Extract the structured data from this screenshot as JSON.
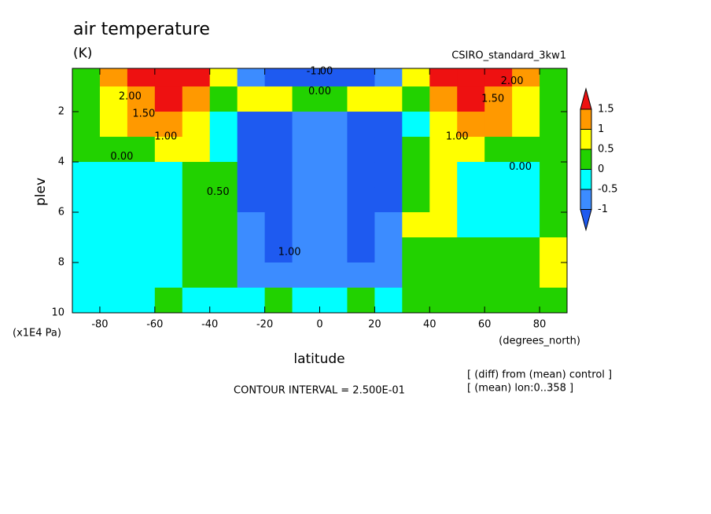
{
  "chart_data": {
    "type": "contour",
    "title": "air temperature",
    "units": "(K)",
    "dataset": "CSIRO_standard_3kw1",
    "x_label": "latitude",
    "x_units": "(degrees_north)",
    "y_label": "plev",
    "y_units": "(x1E4 Pa)",
    "notes": [
      "[ (diff) from (mean) control ]",
      "[ (mean) lon:0..358 ]"
    ],
    "contour_interval": "CONTOUR INTERVAL = 2.500E-01",
    "xlim": [
      -90,
      90
    ],
    "ylim": [
      10,
      0.28
    ],
    "xticks": [
      -80,
      -60,
      -40,
      -20,
      0,
      20,
      40,
      60,
      80
    ],
    "yticks": [
      2,
      4,
      6,
      8,
      10
    ],
    "levels": [
      -1,
      -0.5,
      0,
      0.5,
      1,
      1.5
    ],
    "colors": [
      "#1e5af0",
      "#3c8cff",
      "#00ffff",
      "#22d200",
      "#ffff00",
      "#ff9900",
      "#ee1111"
    ],
    "x": [
      -85,
      -75,
      -65,
      -55,
      -45,
      -35,
      -25,
      -15,
      -5,
      5,
      15,
      25,
      35,
      45,
      55,
      65,
      75,
      85
    ],
    "y": [
      0.5,
      1.5,
      2.5,
      3.5,
      4.5,
      5.5,
      6.5,
      7.5,
      8.5,
      9.5
    ],
    "z": [
      [
        0.3,
        1.2,
        1.8,
        2.2,
        1.6,
        0.7,
        -0.7,
        -1.2,
        -1.3,
        -1.3,
        -1.2,
        -0.7,
        0.7,
        1.6,
        2.2,
        1.8,
        1.2,
        0.3
      ],
      [
        0.3,
        0.8,
        1.3,
        1.7,
        1.2,
        0.2,
        0.6,
        0.7,
        0.3,
        0.3,
        0.7,
        0.6,
        0.2,
        1.2,
        1.7,
        1.3,
        0.8,
        0.3
      ],
      [
        0.3,
        0.6,
        1.2,
        1.3,
        0.8,
        -0.3,
        -1.2,
        -1.1,
        -0.8,
        -0.8,
        -1.1,
        -1.2,
        -0.3,
        0.8,
        1.3,
        1.2,
        0.6,
        0.3
      ],
      [
        0.2,
        0.3,
        0.4,
        0.6,
        0.6,
        -0.2,
        -1.2,
        -1.2,
        -0.6,
        -0.6,
        -1.2,
        -1.2,
        0.3,
        0.9,
        0.6,
        0.4,
        0.3,
        0.2
      ],
      [
        -0.2,
        -0.2,
        -0.2,
        -0.2,
        0.3,
        0.2,
        -1.1,
        -1.2,
        -0.6,
        -0.6,
        -1.2,
        -1.1,
        0.3,
        0.8,
        -0.1,
        -0.3,
        -0.2,
        0.2
      ],
      [
        -0.2,
        -0.4,
        -0.3,
        -0.2,
        0.2,
        0.2,
        -1.1,
        -1.2,
        -0.7,
        -0.7,
        -1.2,
        -1.1,
        0.4,
        0.8,
        -0.3,
        -0.4,
        -0.2,
        0.2
      ],
      [
        -0.2,
        -0.3,
        -0.3,
        -0.2,
        0.2,
        0.2,
        -1.0,
        -1.2,
        -0.7,
        -0.7,
        -1.2,
        -1.0,
        0.5,
        0.7,
        -0.2,
        -0.3,
        -0.2,
        0.3
      ],
      [
        -0.2,
        -0.2,
        -0.2,
        -0.2,
        0.2,
        0.2,
        -0.9,
        -1.1,
        -0.7,
        -0.7,
        -1.1,
        -0.9,
        0.3,
        0.4,
        0.2,
        0.2,
        0.3,
        0.6
      ],
      [
        -0.2,
        -0.2,
        -0.2,
        -0.2,
        0.2,
        0.2,
        -0.7,
        -0.6,
        -0.6,
        -0.6,
        -0.6,
        -0.7,
        0.2,
        0.3,
        0.3,
        0.3,
        0.3,
        0.6
      ],
      [
        -0.2,
        -0.2,
        -0.2,
        0.1,
        -0.2,
        -0.1,
        -0.2,
        0.1,
        -0.2,
        -0.2,
        0.1,
        -0.2,
        0.3,
        0.3,
        0.3,
        0.3,
        0.3,
        0.3
      ]
    ],
    "contour_labels": [
      {
        "label": "0.00",
        "x": -72,
        "y": 3.8
      },
      {
        "label": "1.00",
        "x": -56,
        "y": 3.0
      },
      {
        "label": "1.50",
        "x": -64,
        "y": 2.1
      },
      {
        "label": "2.00",
        "x": -69,
        "y": 1.4
      },
      {
        "label": "0.50",
        "x": -37,
        "y": 5.2
      },
      {
        "label": "-1.00",
        "x": 0,
        "y": 0.4
      },
      {
        "label": "0.00",
        "x": 0,
        "y": 1.2
      },
      {
        "label": "1.00",
        "x": -11,
        "y": 7.6
      },
      {
        "label": "1.00",
        "x": 50,
        "y": 3.0
      },
      {
        "label": "1.50",
        "x": 63,
        "y": 1.5
      },
      {
        "label": "2.00",
        "x": 70,
        "y": 0.8
      },
      {
        "label": "0.00",
        "x": 73,
        "y": 4.2
      }
    ]
  }
}
